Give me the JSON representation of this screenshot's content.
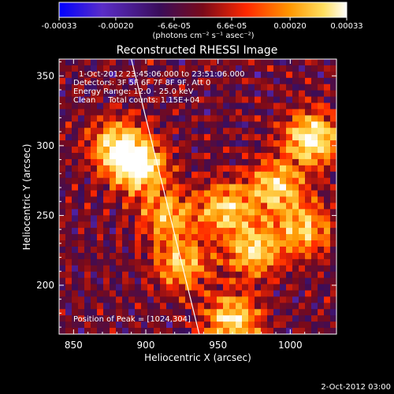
{
  "colorbar": {
    "tick_labels": [
      "-0.00033",
      "-0.00020",
      "-6.6e-05",
      "6.6e-05",
      "0.00020",
      "0.00033"
    ],
    "tick_values": [
      -0.00033,
      -0.0002,
      -6.6e-05,
      6.6e-05,
      0.0002,
      0.00033
    ],
    "range": [
      -0.00033,
      0.00033
    ],
    "units_label": "(photons cm⁻² s⁻¹ asec⁻²)"
  },
  "chart_data": {
    "type": "heatmap",
    "title": "Reconstructed RHESSI Image",
    "xlabel": "Heliocentric X (arcsec)",
    "ylabel": "Heliocentric Y (arcsec)",
    "xlim": [
      840,
      1032
    ],
    "ylim": [
      165,
      362
    ],
    "x_ticks": [
      850,
      900,
      950,
      1000
    ],
    "y_ticks": [
      200,
      250,
      300,
      350
    ],
    "annotations": [
      "1-Oct-2012 23:45:06.000 to 23:51:06.000",
      "Detectors: 3F 5F 6F 7F 8F 9F, Att 0",
      "Energy Range: 12.0 - 25.0 keV",
      "Clean     Total counts: 1.15E+04"
    ],
    "peak_label": "Position of Peak = [1024,304]",
    "peak_position": [
      1024,
      304
    ],
    "limb_line": {
      "from": [
        890,
        362
      ],
      "to": [
        937,
        165
      ]
    },
    "colormap": [
      "#0000ff",
      "#5a2dc8",
      "#3a0d5a",
      "#7a0a1a",
      "#ff2800",
      "#ff9600",
      "#ffe060",
      "#ffffff"
    ],
    "bright_regions": [
      {
        "x": 895,
        "y": 285,
        "intensity": 1.0
      },
      {
        "x": 880,
        "y": 300,
        "intensity": 0.8
      },
      {
        "x": 1015,
        "y": 305,
        "intensity": 1.0
      },
      {
        "x": 990,
        "y": 270,
        "intensity": 0.8
      },
      {
        "x": 955,
        "y": 255,
        "intensity": 0.75
      },
      {
        "x": 975,
        "y": 225,
        "intensity": 0.8
      },
      {
        "x": 960,
        "y": 175,
        "intensity": 0.85
      },
      {
        "x": 925,
        "y": 215,
        "intensity": 0.7
      },
      {
        "x": 915,
        "y": 250,
        "intensity": 0.65
      },
      {
        "x": 1010,
        "y": 240,
        "intensity": 0.7
      }
    ]
  },
  "footer": {
    "timestamp": "2-Oct-2012 03:00"
  }
}
